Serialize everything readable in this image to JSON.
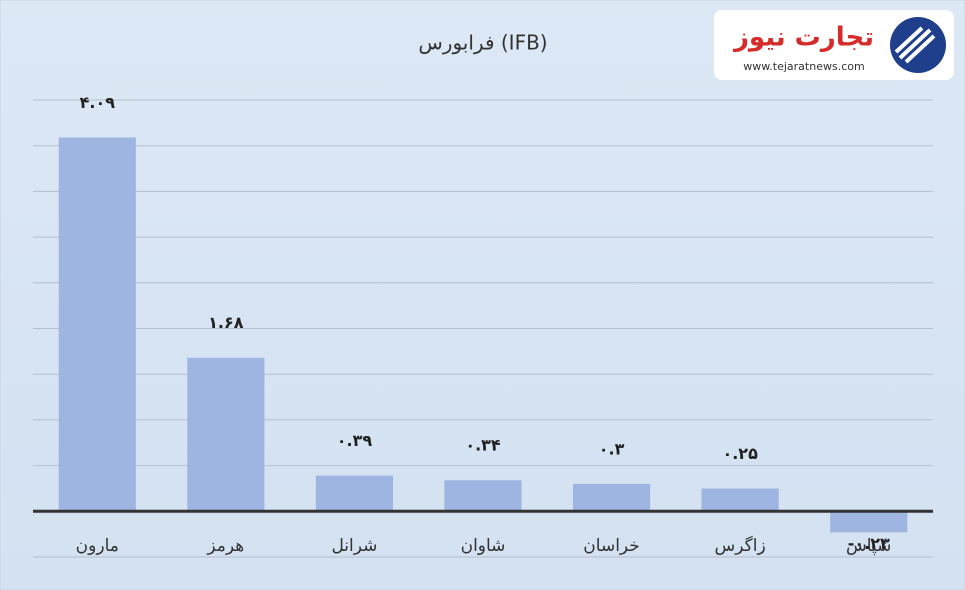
{
  "chart_data": {
    "type": "bar",
    "title": "فرابورس (IFB)",
    "categories": [
      "مارون",
      "هرمز",
      "شرانل",
      "شاوان",
      "خراسان",
      "زاگرس",
      "شپاس"
    ],
    "values": [
      4.09,
      1.68,
      0.39,
      0.34,
      0.3,
      0.25,
      -0.23
    ],
    "value_labels": [
      "۴.۰۹",
      "۱.۶۸",
      "۰.۳۹",
      "۰.۳۴",
      "۰.۳",
      "۰.۲۵",
      "-۰.۲۳"
    ],
    "color": "#9fb5e1",
    "ylim": [
      -0.5,
      4.5
    ],
    "yticks": [
      -0.5,
      0,
      0.5,
      1,
      1.5,
      2,
      2.5,
      3,
      3.5,
      4,
      4.5
    ],
    "grid": true
  },
  "logo": {
    "name": "تجارت نیوز",
    "url": "www.tejaratnews.com"
  }
}
